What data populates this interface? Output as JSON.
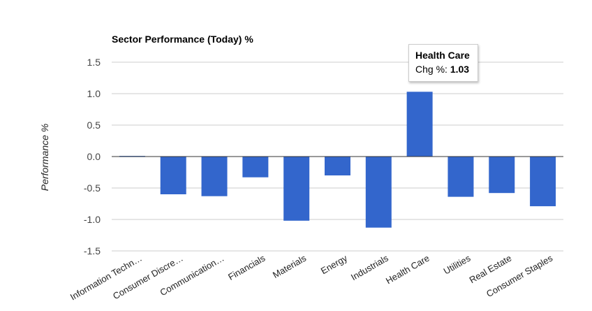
{
  "chart_data": {
    "type": "bar",
    "title": "Sector Performance (Today) %",
    "ylabel": "Performance %",
    "xlabel": "",
    "ylim": [
      -1.5,
      1.5
    ],
    "yticks": [
      "1.5",
      "1.0",
      "0.5",
      "0.0",
      "-0.5",
      "-1.0",
      "-1.5"
    ],
    "grid": true,
    "bar_color": "#3366cc",
    "categories": [
      "Information Techn…",
      "Consumer Discre…",
      "Communication…",
      "Financials",
      "Materials",
      "Energy",
      "Industrials",
      "Health Care",
      "Utilities",
      "Real Estate",
      "Consumer Staples"
    ],
    "values": [
      0.01,
      -0.6,
      -0.63,
      -0.33,
      -1.02,
      -0.3,
      -1.13,
      1.03,
      -0.64,
      -0.58,
      -0.79
    ]
  },
  "tooltip": {
    "title": "Health Care",
    "label": "Chg %: ",
    "value": "1.03"
  }
}
